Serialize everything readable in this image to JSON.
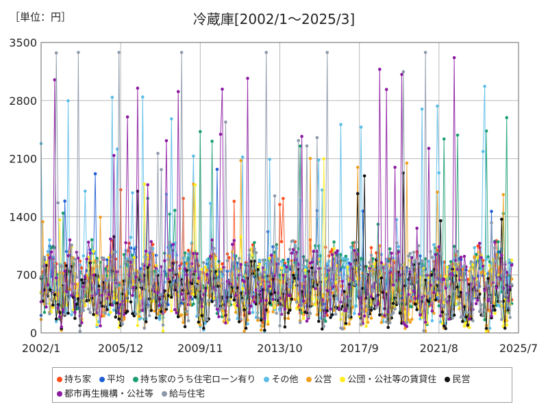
{
  "unit_label": "［単位：円］",
  "chart_data": {
    "type": "line",
    "title": "冷蔵庫[2002/1～2025/3]",
    "ylim": [
      0,
      3500
    ],
    "y_ticks": [
      "0",
      "700",
      "1400",
      "2100",
      "2800",
      "3500"
    ],
    "x_ticks": [
      "2002/1",
      "2005/12",
      "2009/11",
      "2013/10",
      "2017/9",
      "2021/8",
      "2025/7"
    ],
    "grid": true,
    "legend_position": "bottom",
    "series": [
      {
        "name": "持ち家",
        "color": "#ff4d1a",
        "base": 620,
        "spread": 380,
        "spike_prob": 0.04,
        "spike_max": 1300
      },
      {
        "name": "平均",
        "color": "#1f5fd6",
        "base": 600,
        "spread": 340,
        "spike_prob": 0.03,
        "spike_max": 1100
      },
      {
        "name": "持ち家のうち住宅ローン有り",
        "color": "#1a9e6e",
        "base": 620,
        "spread": 420,
        "spike_prob": 0.05,
        "spike_max": 1600
      },
      {
        "name": "その他",
        "color": "#5bbde8",
        "base": 560,
        "spread": 460,
        "spike_prob": 0.07,
        "spike_max": 2100
      },
      {
        "name": "公営",
        "color": "#f0a020",
        "base": 480,
        "spread": 380,
        "spike_prob": 0.04,
        "spike_max": 1300
      },
      {
        "name": "公団・公社等の賃貸住",
        "color": "#ffee22",
        "base": 520,
        "spread": 400,
        "spike_prob": 0.05,
        "spike_max": 1200
      },
      {
        "name": "民営",
        "color": "#111111",
        "base": 450,
        "spread": 330,
        "spike_prob": 0.03,
        "spike_max": 1100
      },
      {
        "name": "都市再生機構・公社等",
        "color": "#8b1aa0",
        "base": 600,
        "spread": 420,
        "spike_prob": 0.06,
        "spike_max": 2400
      },
      {
        "name": "給与住宅",
        "color": "#8c98a8",
        "base": 560,
        "spread": 460,
        "spike_prob": 0.07,
        "spike_max": 2800
      }
    ]
  }
}
